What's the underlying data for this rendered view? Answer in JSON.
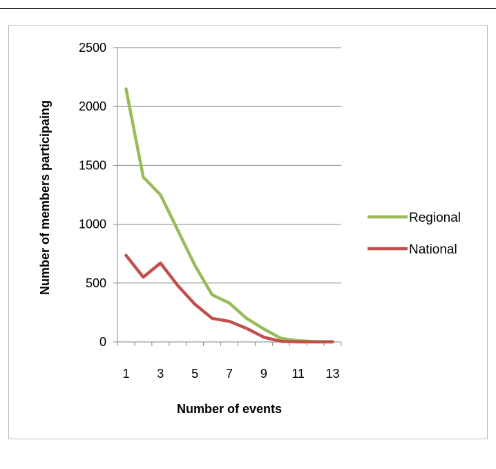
{
  "chart_data": {
    "type": "line",
    "x": [
      1,
      2,
      3,
      4,
      5,
      6,
      7,
      8,
      9,
      10,
      11,
      12,
      13
    ],
    "xticks": [
      "1",
      "3",
      "5",
      "7",
      "9",
      "11",
      "13"
    ],
    "xlabel": "Number of events",
    "ylabel": "Number of members participaing",
    "ylim": [
      0,
      2500
    ],
    "yticks": [
      "0",
      "500",
      "1000",
      "1500",
      "2000",
      "2500"
    ],
    "grid": true,
    "legend_position": "right",
    "series": [
      {
        "name": "Regional",
        "color": "#9bbb59",
        "values": [
          2150,
          1400,
          1250,
          950,
          650,
          400,
          330,
          200,
          110,
          30,
          10,
          3,
          2
        ]
      },
      {
        "name": "National",
        "color": "#c0504d",
        "values": [
          735,
          550,
          670,
          480,
          320,
          200,
          175,
          115,
          40,
          5,
          0,
          0,
          0
        ]
      }
    ]
  }
}
